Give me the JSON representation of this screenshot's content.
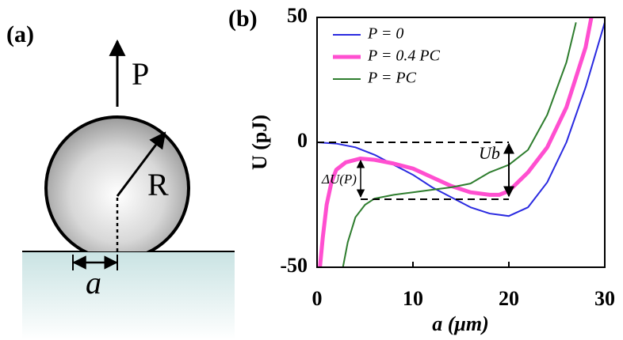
{
  "panel_a": {
    "label": "(a)",
    "force_label": "P",
    "radius_label": "R",
    "contact_label": "a"
  },
  "chart_data": {
    "type": "line",
    "panel_label": "(b)",
    "xlabel": "a (μm)",
    "ylabel": "U (pJ)",
    "barrier_label": "Ub",
    "delta_label": "ΔU(P)",
    "xlim": [
      0,
      30
    ],
    "ylim": [
      -50,
      50
    ],
    "xticks": [
      0,
      10,
      20,
      30
    ],
    "yticks": [
      -50,
      0,
      50
    ],
    "series": [
      {
        "name": "P = 0",
        "color": "#2a2ae0",
        "width": 2,
        "x": [
          0,
          2,
          4,
          6,
          8,
          10,
          12,
          14,
          16,
          18,
          20,
          22,
          24,
          26,
          28,
          30
        ],
        "values": [
          0,
          -0.5,
          -2,
          -5,
          -9,
          -13,
          -18,
          -22,
          -26,
          -28.5,
          -29.5,
          -26,
          -16,
          0,
          22,
          48
        ]
      },
      {
        "name": "P = 0.4 PC",
        "color": "#ff4fd0",
        "width": 5,
        "x": [
          0.3,
          0.6,
          1,
          1.5,
          2,
          3,
          4.5,
          6,
          8,
          10,
          12,
          14,
          16,
          18,
          19,
          20,
          22,
          24,
          26,
          28,
          28.6
        ],
        "values": [
          -50,
          -38,
          -25,
          -16,
          -11,
          -8,
          -6.5,
          -7,
          -8.5,
          -10.5,
          -14,
          -17.5,
          -20,
          -21,
          -21,
          -19.5,
          -12,
          -2,
          14,
          38,
          50
        ]
      },
      {
        "name": "P = PC",
        "color": "#2e7d2e",
        "width": 2,
        "x": [
          2.7,
          3.2,
          4,
          5,
          6,
          8,
          10,
          12,
          14,
          16,
          18,
          20,
          22,
          24,
          26,
          27
        ],
        "values": [
          -50,
          -40,
          -30,
          -25,
          -22.5,
          -21,
          -20,
          -19,
          -18,
          -16.5,
          -12,
          -9,
          -3,
          11,
          32,
          48
        ]
      }
    ]
  }
}
